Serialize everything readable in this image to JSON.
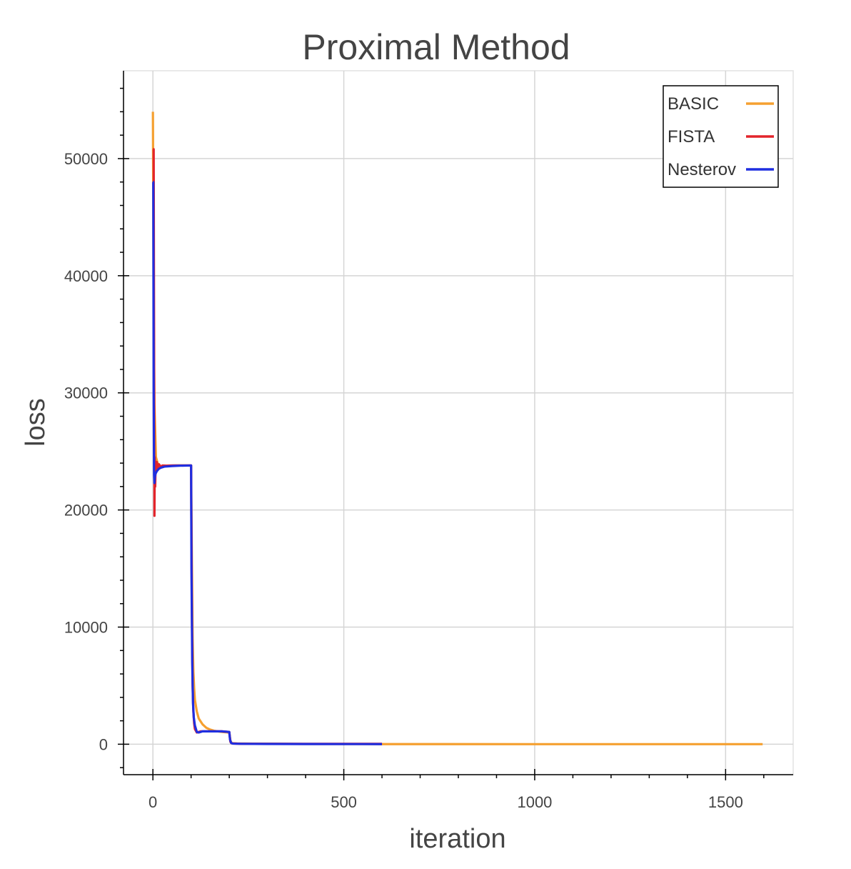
{
  "chart_data": {
    "type": "line",
    "title": "Proximal Method",
    "xlabel": "iteration",
    "ylabel": "loss",
    "xlim": [
      -77,
      1677
    ],
    "ylim": [
      -2600,
      57500
    ],
    "x_ticks": [
      0,
      500,
      1000,
      1500
    ],
    "x_tick_labels": [
      "0",
      "500",
      "1000",
      "1500"
    ],
    "y_ticks": [
      0,
      10000,
      20000,
      30000,
      40000,
      50000
    ],
    "y_tick_labels": [
      "0",
      "10000",
      "20000",
      "30000",
      "40000",
      "50000"
    ],
    "grid": true,
    "legend_position": "top-right",
    "series": [
      {
        "name": "BASIC",
        "color": "#f5a030",
        "x": [
          0,
          1,
          2,
          4,
          8,
          15,
          30,
          60,
          100,
          102,
          104,
          106,
          108,
          110,
          115,
          120,
          130,
          140,
          150,
          160,
          170,
          180,
          200,
          203,
          206,
          210,
          220,
          260,
          300,
          400,
          600,
          1000,
          1400,
          1597
        ],
        "y": [
          54000,
          46000,
          37000,
          29000,
          24500,
          23700,
          23750,
          23800,
          23800,
          16000,
          9000,
          6200,
          4800,
          3800,
          2800,
          2200,
          1700,
          1400,
          1250,
          1150,
          1100,
          1050,
          1000,
          300,
          120,
          80,
          60,
          45,
          40,
          20,
          10,
          5,
          5,
          5
        ]
      },
      {
        "name": "FISTA",
        "color": "#e3242b",
        "x": [
          0,
          2,
          3,
          4,
          5,
          6,
          7,
          8,
          10,
          13,
          16,
          20,
          25,
          35,
          50,
          70,
          100,
          102,
          104,
          106,
          108,
          110,
          115,
          120,
          125,
          130,
          140,
          160,
          180,
          200,
          203,
          206,
          210,
          230,
          300,
          400,
          600
        ],
        "y": [
          50800,
          50800,
          36000,
          19500,
          24500,
          22000,
          24000,
          23400,
          24100,
          23600,
          23900,
          23700,
          23800,
          23780,
          23800,
          23800,
          23800,
          12000,
          5000,
          2800,
          1800,
          1300,
          1000,
          1050,
          1100,
          1100,
          1100,
          1100,
          1100,
          1050,
          200,
          80,
          60,
          40,
          35,
          30,
          30
        ]
      },
      {
        "name": "Nesterov",
        "color": "#1f2ee0",
        "x": [
          0,
          1,
          2,
          3,
          4,
          5,
          7,
          10,
          15,
          20,
          30,
          50,
          70,
          100,
          101,
          103,
          105,
          107,
          110,
          115,
          120,
          125,
          130,
          140,
          160,
          180,
          200,
          202,
          205,
          210,
          230,
          300,
          400,
          600
        ],
        "y": [
          48000,
          48000,
          30000,
          23000,
          22300,
          22800,
          23100,
          23300,
          23500,
          23600,
          23700,
          23750,
          23780,
          23800,
          15000,
          7000,
          3500,
          2300,
          1600,
          1050,
          1000,
          1050,
          1100,
          1100,
          1100,
          1100,
          1050,
          400,
          100,
          50,
          35,
          25,
          15,
          10
        ]
      }
    ]
  }
}
